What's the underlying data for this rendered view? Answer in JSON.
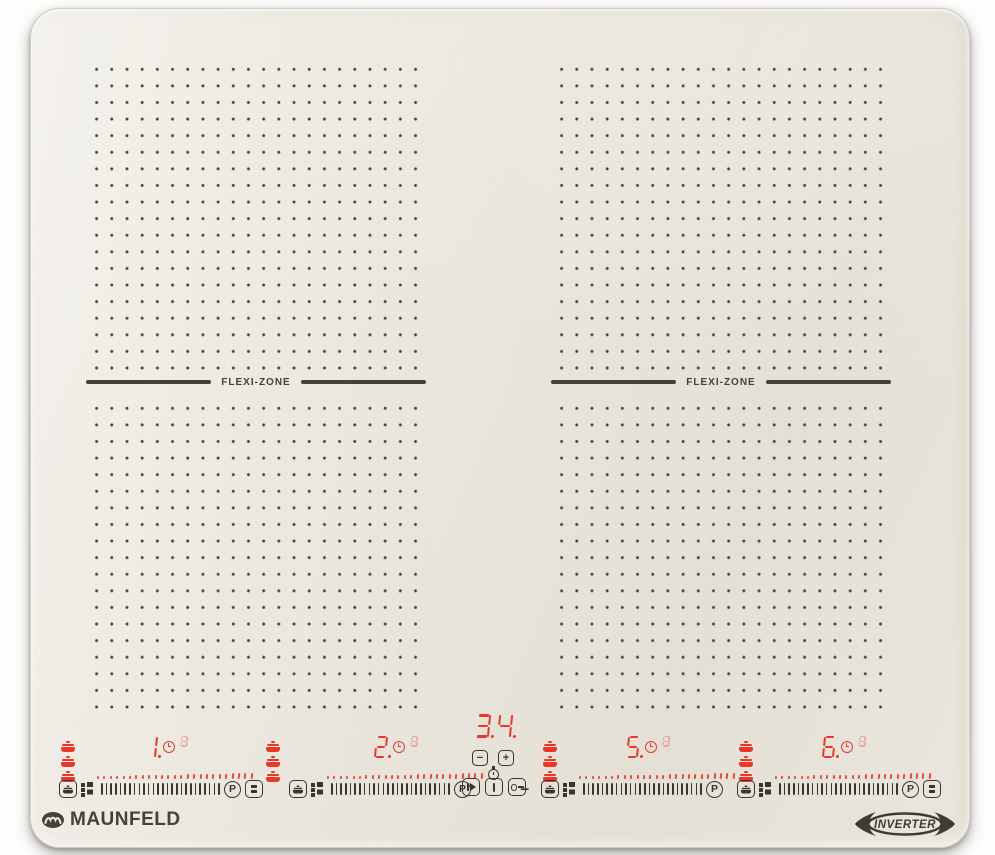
{
  "brand": {
    "name": "MAUNFELD"
  },
  "badge": {
    "label": "INVERTER"
  },
  "surface": {
    "flexi_left": "FLEXI-ZONE",
    "flexi_right": "FLEXI-ZONE"
  },
  "center": {
    "display": "3.4.",
    "minus": "−",
    "plus": "+"
  },
  "zones": [
    {
      "id": "1",
      "display": "1.",
      "timer_digit": "8",
      "boost": "P"
    },
    {
      "id": "2",
      "display": "2.",
      "timer_digit": "8",
      "boost": "P"
    },
    {
      "id": "5",
      "display": "5.",
      "timer_digit": "8",
      "boost": "P"
    },
    {
      "id": "6",
      "display": "6.",
      "timer_digit": "8",
      "boost": "P"
    }
  ],
  "slider": {
    "tick_count": 26,
    "mark_count": 25
  },
  "colors": {
    "led": "#e8382c",
    "control": "#3a362f",
    "text": "#45403a",
    "dot": "#46413a",
    "surface": "#eae6dd"
  }
}
